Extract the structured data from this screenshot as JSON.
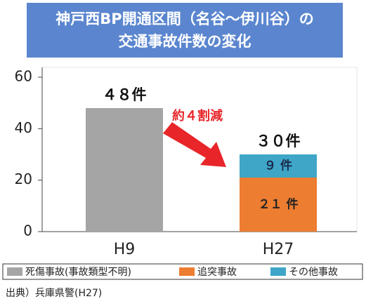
{
  "chart_data": {
    "type": "stacked_bar",
    "title": [
      "神戸西BP開通区間（名谷～伊川谷）の",
      "交通事故件数の変化"
    ],
    "categories": [
      "H9",
      "H27"
    ],
    "series": [
      {
        "name": "死傷事故(事故類型不明)",
        "color": "#a5a5a5",
        "values": [
          48,
          null
        ]
      },
      {
        "name": "追突事故",
        "color": "#ed7d31",
        "values": [
          null,
          21
        ],
        "value_labels": [
          null,
          "２１ 件"
        ]
      },
      {
        "name": "その他事故",
        "color": "#3fa6c8",
        "values": [
          null,
          9
        ],
        "value_labels": [
          null,
          "９ 件"
        ]
      }
    ],
    "totals": [
      48,
      30
    ],
    "total_labels": [
      "４８件",
      "３０件"
    ],
    "annotation": "約４割減",
    "source": "出典）兵庫県警(H27)",
    "ylim": [
      0,
      60
    ],
    "yticks": [
      0,
      20,
      40,
      60
    ]
  }
}
